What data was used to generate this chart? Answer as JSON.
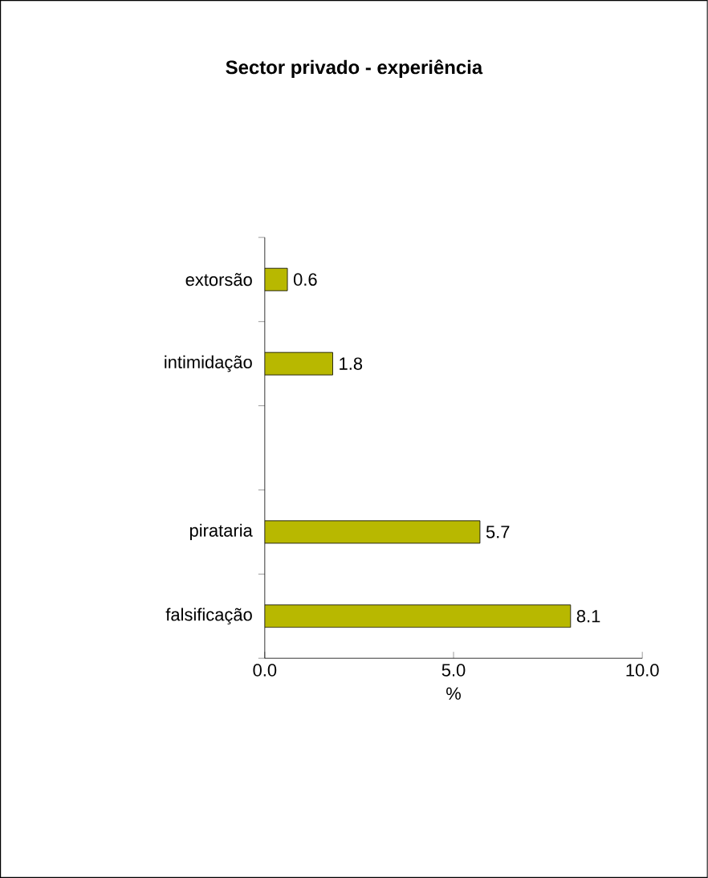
{
  "chart_data": {
    "type": "bar",
    "orientation": "horizontal",
    "title": "Sector privado - experiência",
    "xlabel": "%",
    "categories": [
      "extorsão",
      "intimidação",
      null,
      "pirataria",
      "falsificação"
    ],
    "values": [
      0.6,
      1.8,
      null,
      5.7,
      8.1
    ],
    "color": "#b8b800",
    "xlim": [
      0,
      10
    ],
    "xticks": [
      {
        "value": 0,
        "label": "0.0"
      },
      {
        "value": 5,
        "label": "5.0"
      },
      {
        "value": 10,
        "label": "10.0"
      }
    ],
    "data_labels": true,
    "grid": false
  }
}
